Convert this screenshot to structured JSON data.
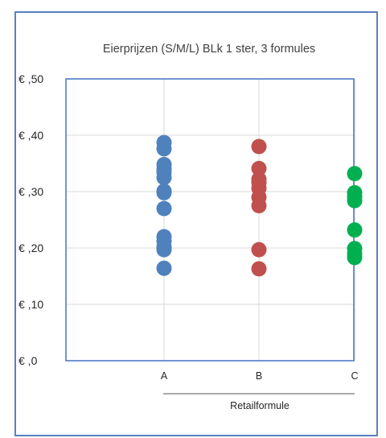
{
  "chart_data": {
    "type": "scatter",
    "title": "Eierprijzen (S/M/L) BLk 1 ster, 3 formules",
    "xlabel": "Retailformule",
    "ylabel": "",
    "categories": [
      "A",
      "B",
      "C"
    ],
    "ylim": [
      0,
      0.5
    ],
    "yticks": [
      0,
      0.1,
      0.2,
      0.3,
      0.4,
      0.5
    ],
    "ytick_labels": [
      "€ ,0",
      "€ ,10",
      "€ ,20",
      "€ ,30",
      "€ ,40",
      "€ ,50"
    ],
    "grid": true,
    "legend": "none",
    "series": [
      {
        "category": "A",
        "color": "#4f81bd",
        "values": [
          0.387,
          0.376,
          0.348,
          0.34,
          0.334,
          0.325,
          0.301,
          0.298,
          0.27,
          0.22,
          0.212,
          0.202,
          0.197,
          0.164
        ]
      },
      {
        "category": "B",
        "color": "#c0504d",
        "values": [
          0.38,
          0.341,
          0.322,
          0.316,
          0.306,
          0.29,
          0.275,
          0.197,
          0.163
        ]
      },
      {
        "category": "C",
        "color": "#00b050",
        "values": [
          0.332,
          0.298,
          0.291,
          0.284,
          0.232,
          0.199,
          0.19,
          0.183
        ]
      }
    ]
  }
}
